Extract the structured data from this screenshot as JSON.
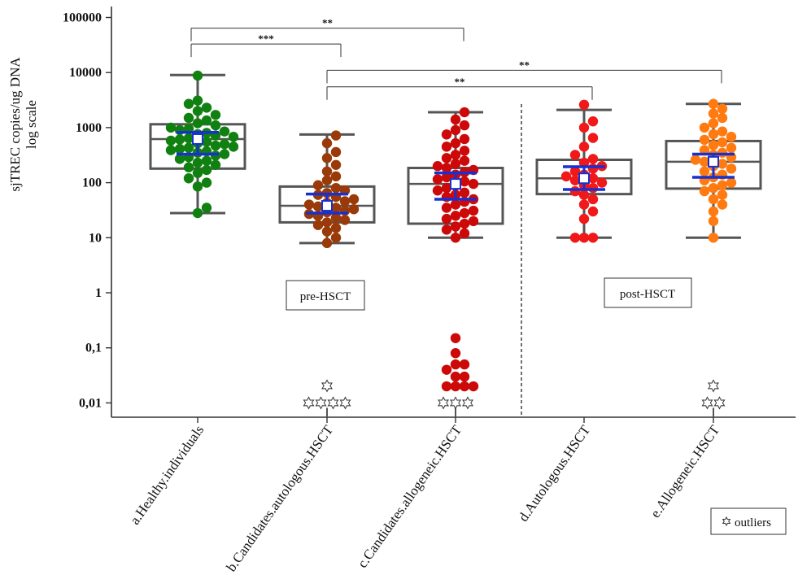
{
  "chart_data": {
    "type": "box-scatter",
    "scale": "log",
    "ylabel_line1": "sjTREC copies/ug DNA",
    "ylabel_line2": "log scale",
    "ylim": [
      0.006,
      200000
    ],
    "y_ticks": [
      {
        "value": 100000,
        "label": "100000"
      },
      {
        "value": 10000,
        "label": "10000"
      },
      {
        "value": 1000,
        "label": "1000"
      },
      {
        "value": 100,
        "label": "100"
      },
      {
        "value": 10,
        "label": "10"
      },
      {
        "value": 1,
        "label": "1"
      },
      {
        "value": 0.1,
        "label": "0,1"
      },
      {
        "value": 0.01,
        "label": "0,01"
      }
    ],
    "groups": [
      {
        "name": "a.Healthy.individuals",
        "color": "#108010",
        "box": {
          "min": 28,
          "q1": 180,
          "median": 620,
          "q3": 1150,
          "max": 9000
        },
        "mean": 620,
        "ci": [
          330,
          820
        ],
        "points": [
          28,
          35,
          85,
          100,
          120,
          150,
          170,
          190,
          210,
          230,
          250,
          270,
          290,
          310,
          330,
          350,
          370,
          390,
          410,
          430,
          450,
          470,
          500,
          520,
          550,
          580,
          610,
          640,
          680,
          720,
          760,
          800,
          850,
          900,
          950,
          1000,
          1100,
          1200,
          1350,
          1500,
          1700,
          2000,
          2300,
          2700,
          3100,
          8800
        ],
        "outliers_at_0_01": 0,
        "outliers_at_0_02": 0
      },
      {
        "name": "b.Candidates.autologous.HSCT",
        "color": "#9a3a08",
        "box": {
          "min": 8,
          "q1": 19,
          "median": 38,
          "q3": 85,
          "max": 750
        },
        "mean": 38,
        "ci": [
          28,
          62
        ],
        "points": [
          8,
          10,
          13,
          15,
          17,
          19,
          21,
          23,
          25,
          27,
          29,
          31,
          33,
          35,
          37,
          40,
          43,
          46,
          50,
          55,
          60,
          65,
          72,
          80,
          90,
          110,
          130,
          160,
          210,
          280,
          360,
          520,
          720
        ],
        "outliers_at_0_01": 4,
        "outliers_at_0_02": 1
      },
      {
        "name": "c.Candidates.allogeneic.HSCT",
        "color": "#cc0808",
        "box": {
          "min": 10,
          "q1": 18,
          "median": 95,
          "q3": 185,
          "max": 1900
        },
        "mean": 95,
        "ci": [
          50,
          150
        ],
        "points": [
          10,
          12,
          14,
          16,
          18,
          20,
          22,
          25,
          28,
          31,
          35,
          40,
          45,
          50,
          55,
          60,
          66,
          72,
          80,
          88,
          95,
          105,
          115,
          125,
          140,
          155,
          170,
          185,
          200,
          220,
          250,
          280,
          320,
          380,
          450,
          520,
          620,
          750,
          900,
          1100,
          1400,
          1900
        ],
        "low_points": [
          0.02,
          0.02,
          0.02,
          0.02,
          0.03,
          0.03,
          0.04,
          0.05,
          0.05,
          0.08,
          0.15
        ],
        "outliers_at_0_01": 3,
        "outliers_at_0_02": 0
      },
      {
        "name": "d.Autologous.HSCT",
        "color": "#f01818",
        "box": {
          "min": 10,
          "q1": 62,
          "median": 120,
          "q3": 260,
          "max": 2100
        },
        "mean": 120,
        "ci": [
          75,
          195
        ],
        "points": [
          10,
          10,
          10,
          22,
          30,
          40,
          50,
          60,
          70,
          80,
          90,
          100,
          110,
          120,
          130,
          140,
          160,
          180,
          200,
          230,
          270,
          320,
          450,
          650,
          1000,
          1300,
          2600
        ],
        "outliers_at_0_01": 0,
        "outliers_at_0_02": 0
      },
      {
        "name": "e.Allogeneic.HSCT",
        "color": "#ff7a10",
        "box": {
          "min": 10,
          "q1": 78,
          "median": 240,
          "q3": 570,
          "max": 2700
        },
        "mean": 240,
        "ci": [
          125,
          330
        ],
        "points": [
          10,
          20,
          30,
          40,
          50,
          60,
          70,
          80,
          90,
          100,
          110,
          125,
          140,
          160,
          180,
          200,
          220,
          240,
          260,
          290,
          320,
          350,
          390,
          430,
          480,
          540,
          600,
          680,
          760,
          850,
          1000,
          1200,
          1500,
          1800,
          2200,
          2700
        ],
        "outliers_at_0_01": 2,
        "outliers_at_0_02": 1
      }
    ],
    "significance": [
      {
        "from": 0,
        "to": 1,
        "label": "***",
        "level": 33000
      },
      {
        "from": 0,
        "to": 2,
        "label": "**",
        "level": 64000
      },
      {
        "from": 1,
        "to": 3,
        "label": "**",
        "level": 5500
      },
      {
        "from": 1,
        "to": 4,
        "label": "**",
        "level": 11000
      }
    ],
    "annotations": {
      "pre_label": "pre-HSCT",
      "post_label": "post-HSCT",
      "legend_symbol": "✡",
      "legend_text": "outliers"
    }
  }
}
